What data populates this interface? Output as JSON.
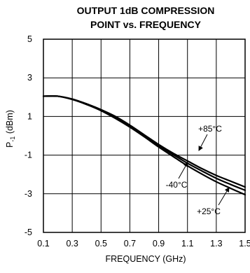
{
  "chart_data": {
    "type": "line",
    "title_lines": [
      "OUTPUT 1dB COMPRESSION",
      "POINT vs. FREQUENCY"
    ],
    "xlabel": "FREQUENCY (GHz)",
    "ylabel_main": "P",
    "ylabel_sub": "-1",
    "ylabel_unit": " (dBm)",
    "xlim": [
      0.1,
      1.5
    ],
    "ylim": [
      -5,
      5
    ],
    "x_ticks": [
      "0.1",
      "0.3",
      "0.5",
      "0.7",
      "0.9",
      "1.1",
      "1.3",
      "1.5"
    ],
    "y_ticks": [
      "5",
      "3",
      "1",
      "-1",
      "-3",
      "-5"
    ],
    "x_tick_values": [
      0.1,
      0.3,
      0.5,
      0.7,
      0.9,
      1.1,
      1.3,
      1.5
    ],
    "y_tick_values": [
      5,
      3,
      1,
      -1,
      -3,
      -5
    ],
    "grid": true,
    "series": [
      {
        "name": "+85°C",
        "x": [
          0.1,
          0.2,
          0.3,
          0.4,
          0.5,
          0.6,
          0.7,
          0.8,
          0.9,
          1.0,
          1.1,
          1.2,
          1.3,
          1.4,
          1.5
        ],
        "y": [
          2.05,
          2.05,
          1.9,
          1.65,
          1.35,
          1.0,
          0.55,
          0.05,
          -0.45,
          -0.9,
          -1.3,
          -1.7,
          -2.05,
          -2.35,
          -2.65
        ]
      },
      {
        "name": "+25°C",
        "x": [
          0.1,
          0.2,
          0.3,
          0.4,
          0.5,
          0.6,
          0.7,
          0.8,
          0.9,
          1.0,
          1.1,
          1.2,
          1.3,
          1.4,
          1.5
        ],
        "y": [
          2.05,
          2.05,
          1.9,
          1.65,
          1.35,
          0.95,
          0.5,
          0.0,
          -0.5,
          -0.97,
          -1.42,
          -1.82,
          -2.2,
          -2.52,
          -2.82
        ]
      },
      {
        "name": "-40°C",
        "x": [
          0.1,
          0.2,
          0.3,
          0.4,
          0.5,
          0.6,
          0.7,
          0.8,
          0.9,
          1.0,
          1.1,
          1.2,
          1.3,
          1.4,
          1.5
        ],
        "y": [
          2.05,
          2.05,
          1.88,
          1.62,
          1.3,
          0.9,
          0.45,
          -0.05,
          -0.58,
          -1.07,
          -1.55,
          -1.98,
          -2.38,
          -2.72,
          -3.05
        ]
      }
    ],
    "annotations": [
      {
        "text": "+85°C"
      },
      {
        "text": "-40°C"
      },
      {
        "text": "+25°C"
      }
    ]
  }
}
